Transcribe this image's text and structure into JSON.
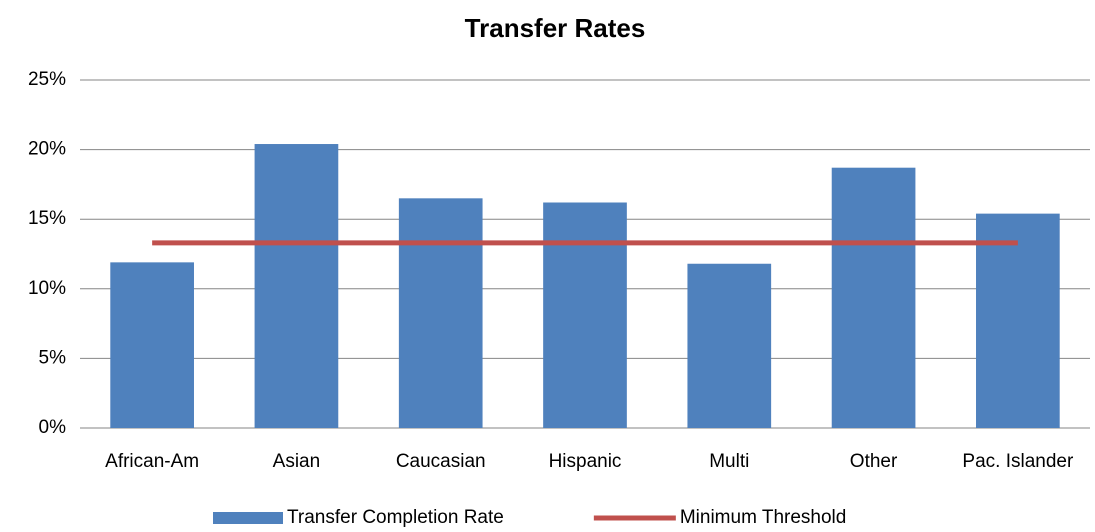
{
  "chart_data": {
    "type": "bar",
    "title": "Transfer Rates",
    "categories": [
      "African-Am",
      "Asian",
      "Caucasian",
      "Hispanic",
      "Multi",
      "Other",
      "Pac. Islander"
    ],
    "series": [
      {
        "name": "Transfer Completion Rate",
        "type": "bar",
        "color": "#4f81bd",
        "values": [
          11.9,
          20.4,
          16.5,
          16.2,
          11.8,
          18.7,
          15.4
        ]
      },
      {
        "name": "Minimum Threshold",
        "type": "line",
        "color": "#c0504d",
        "values": [
          13.3,
          13.3,
          13.3,
          13.3,
          13.3,
          13.3,
          13.3
        ]
      }
    ],
    "ylim": [
      0,
      25
    ],
    "yticks": [
      {
        "value": 0,
        "label": "0%"
      },
      {
        "value": 5,
        "label": "5%"
      },
      {
        "value": 10,
        "label": "10%"
      },
      {
        "value": 15,
        "label": "15%"
      },
      {
        "value": 20,
        "label": "20%"
      },
      {
        "value": 25,
        "label": "25%"
      }
    ],
    "grid": true,
    "legend": "bottom"
  }
}
